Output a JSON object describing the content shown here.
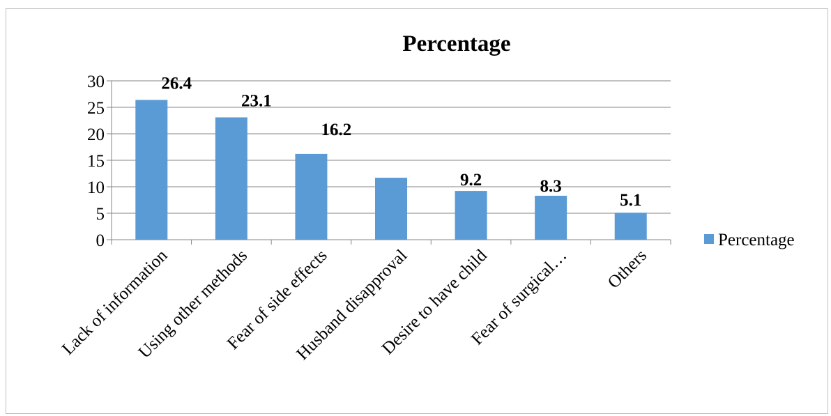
{
  "chart_data": {
    "type": "bar",
    "title": "Percentage",
    "categories": [
      "Lack of information",
      "Using other methods",
      "Fear of side effects",
      "Husband disapproval",
      "Desire to have child",
      "Fear of surgical…",
      "Others"
    ],
    "series": [
      {
        "name": "Percentage",
        "values": [
          26.4,
          23.1,
          16.2,
          11.7,
          9.2,
          8.3,
          5.1
        ],
        "color": "#5b9bd5"
      }
    ],
    "data_labels": [
      "26.4",
      "23.1",
      "16.2",
      "",
      "9.2",
      "8.3",
      "5.1"
    ],
    "ylim": [
      0,
      30
    ],
    "yticks": [
      0,
      5,
      10,
      15,
      20,
      25,
      30
    ],
    "xlabel": "",
    "ylabel": "",
    "grid": true,
    "legend_position": "right"
  }
}
